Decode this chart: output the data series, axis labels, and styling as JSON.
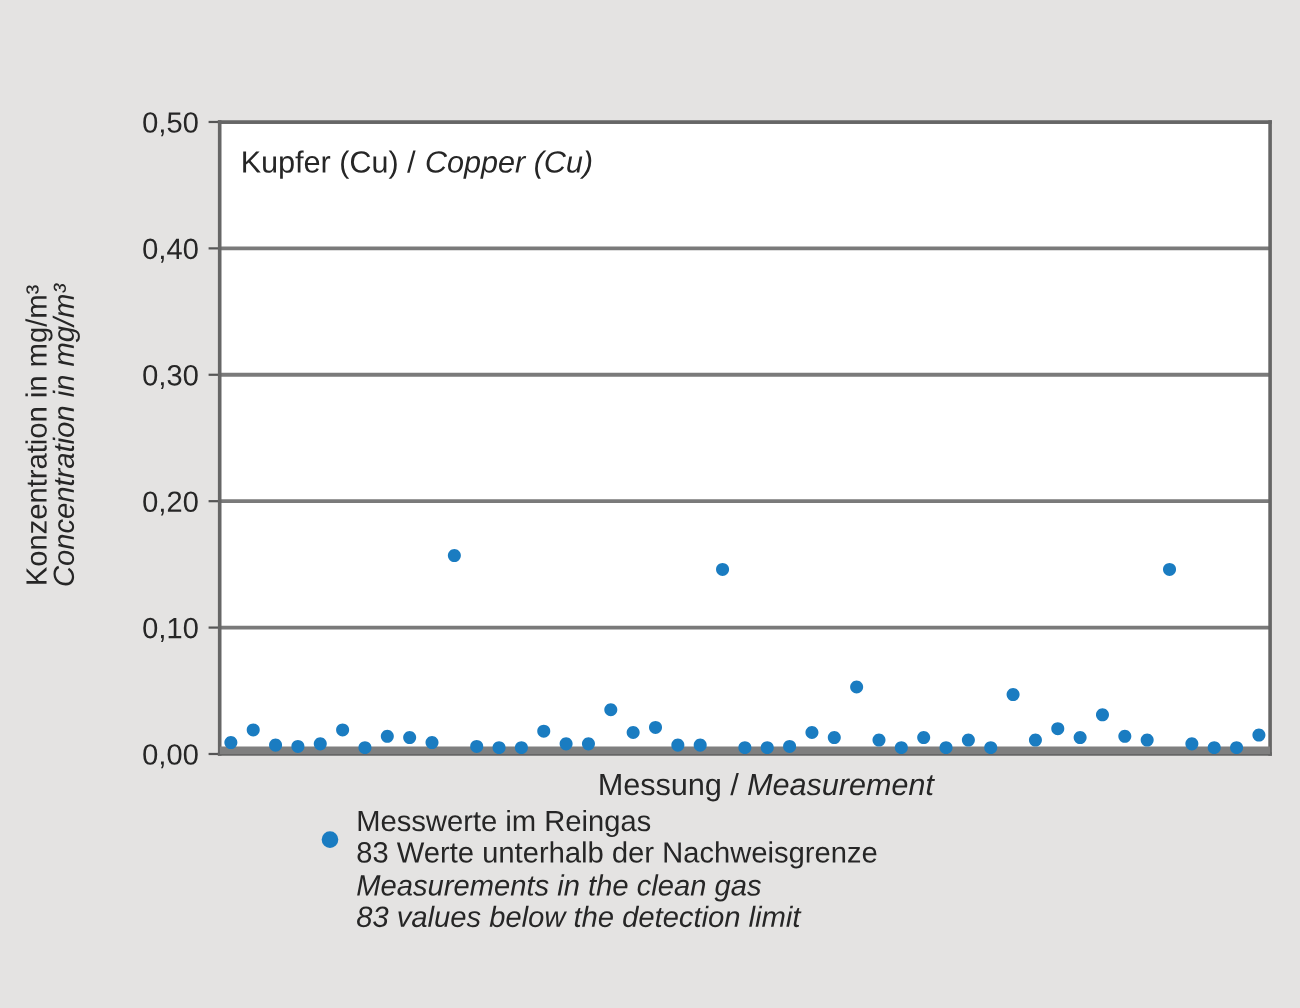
{
  "chart_data": {
    "type": "scatter",
    "title": "Kupfer (Cu) / Copper (Cu)",
    "xlabel": "Messung / Measurement",
    "ylabel": "Konzentration in mg/m³\nConcentration in mg/m³",
    "categories": [
      null,
      null,
      null,
      null,
      null,
      null,
      null,
      null,
      null,
      null,
      null,
      null,
      null,
      null,
      null,
      null,
      null,
      null,
      null,
      null,
      null,
      null,
      null,
      null,
      null,
      null,
      null,
      null,
      null,
      null,
      null,
      null,
      null,
      null,
      null,
      null,
      null,
      null,
      null,
      null,
      null,
      null,
      null,
      null,
      null,
      null,
      null
    ],
    "series": [
      {
        "name": "Messwerte im Reingas\n83 Werte unterhalb der Nachweisgrenze",
        "color": "#1a7cc1",
        "values": [
          0.009,
          0.019,
          0.007,
          0.006,
          0.008,
          0.019,
          0.005,
          0.014,
          0.013,
          0.009,
          0.157,
          0.006,
          0.005,
          0.005,
          0.018,
          0.008,
          0.008,
          0.035,
          0.017,
          0.021,
          0.007,
          0.007,
          0.146,
          0.005,
          0.005,
          0.006,
          0.017,
          0.013,
          0.053,
          0.011,
          0.005,
          0.013,
          0.005,
          0.011,
          0.005,
          0.047,
          0.011,
          0.02,
          0.013,
          0.031,
          0.014,
          0.011,
          0.146,
          0.008,
          0.005,
          0.005,
          0.015
        ]
      }
    ],
    "ylim": [
      0,
      0.5
    ],
    "yticks": [
      {
        "value": 0,
        "label": "0,00"
      },
      {
        "value": 0.1,
        "label": "0,10"
      },
      {
        "value": 0.2,
        "label": "0,20"
      },
      {
        "value": 0.3,
        "label": "0,30"
      },
      {
        "value": 0.4,
        "label": "0,40"
      },
      {
        "value": 0.5,
        "label": "0,50"
      }
    ],
    "bands": [
      {
        "axis": "y",
        "from": 0,
        "to": 0.006,
        "color": "#7f7f7f"
      }
    ],
    "grid": "y",
    "marker": "circle",
    "legend": "bottom",
    "tick_labels": "y",
    "annotations": [
      "Measurements in the clean gas\n83 values below the detection limit"
    ]
  }
}
